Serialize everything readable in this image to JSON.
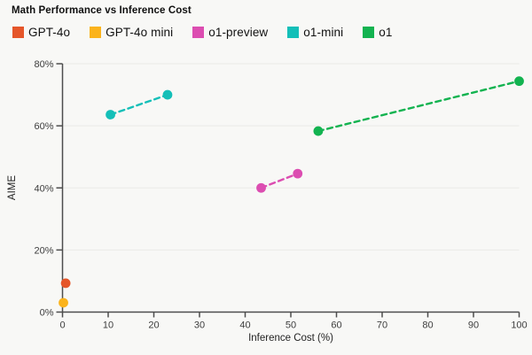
{
  "title": "Math Performance vs Inference Cost",
  "colors": {
    "background": "#F8F8F6",
    "gridline": "#EAEAE7",
    "axis": "#4D4D4D",
    "tick_label": "#3D3D3D",
    "text": "#101010"
  },
  "chart_data": {
    "type": "scatter",
    "title": "Math Performance vs Inference Cost",
    "xlabel": "Inference Cost (%)",
    "ylabel": "AIME",
    "xlim": [
      0,
      100
    ],
    "ylim": [
      0,
      80
    ],
    "x_ticks": [
      0,
      10,
      20,
      30,
      40,
      50,
      60,
      70,
      80,
      90,
      100
    ],
    "y_ticks": [
      0,
      20,
      40,
      60,
      80
    ],
    "y_tick_suffix": "%",
    "grid": true,
    "legend_position": "top",
    "line_style": "dashed",
    "series": [
      {
        "name": "GPT-4o",
        "color": "#E5562A",
        "points": [
          [
            0.7,
            9.3
          ]
        ]
      },
      {
        "name": "GPT-4o mini",
        "color": "#FBB31C",
        "points": [
          [
            0.2,
            3.0
          ]
        ]
      },
      {
        "name": "o1-preview",
        "color": "#DC4DB1",
        "points": [
          [
            43.5,
            40.0
          ],
          [
            51.5,
            44.6
          ]
        ]
      },
      {
        "name": "o1-mini",
        "color": "#14BFB8",
        "points": [
          [
            10.5,
            63.6
          ],
          [
            23.0,
            70.0
          ]
        ]
      },
      {
        "name": "o1",
        "color": "#13B350",
        "points": [
          [
            56.0,
            58.3
          ],
          [
            100.0,
            74.4
          ]
        ]
      }
    ]
  }
}
